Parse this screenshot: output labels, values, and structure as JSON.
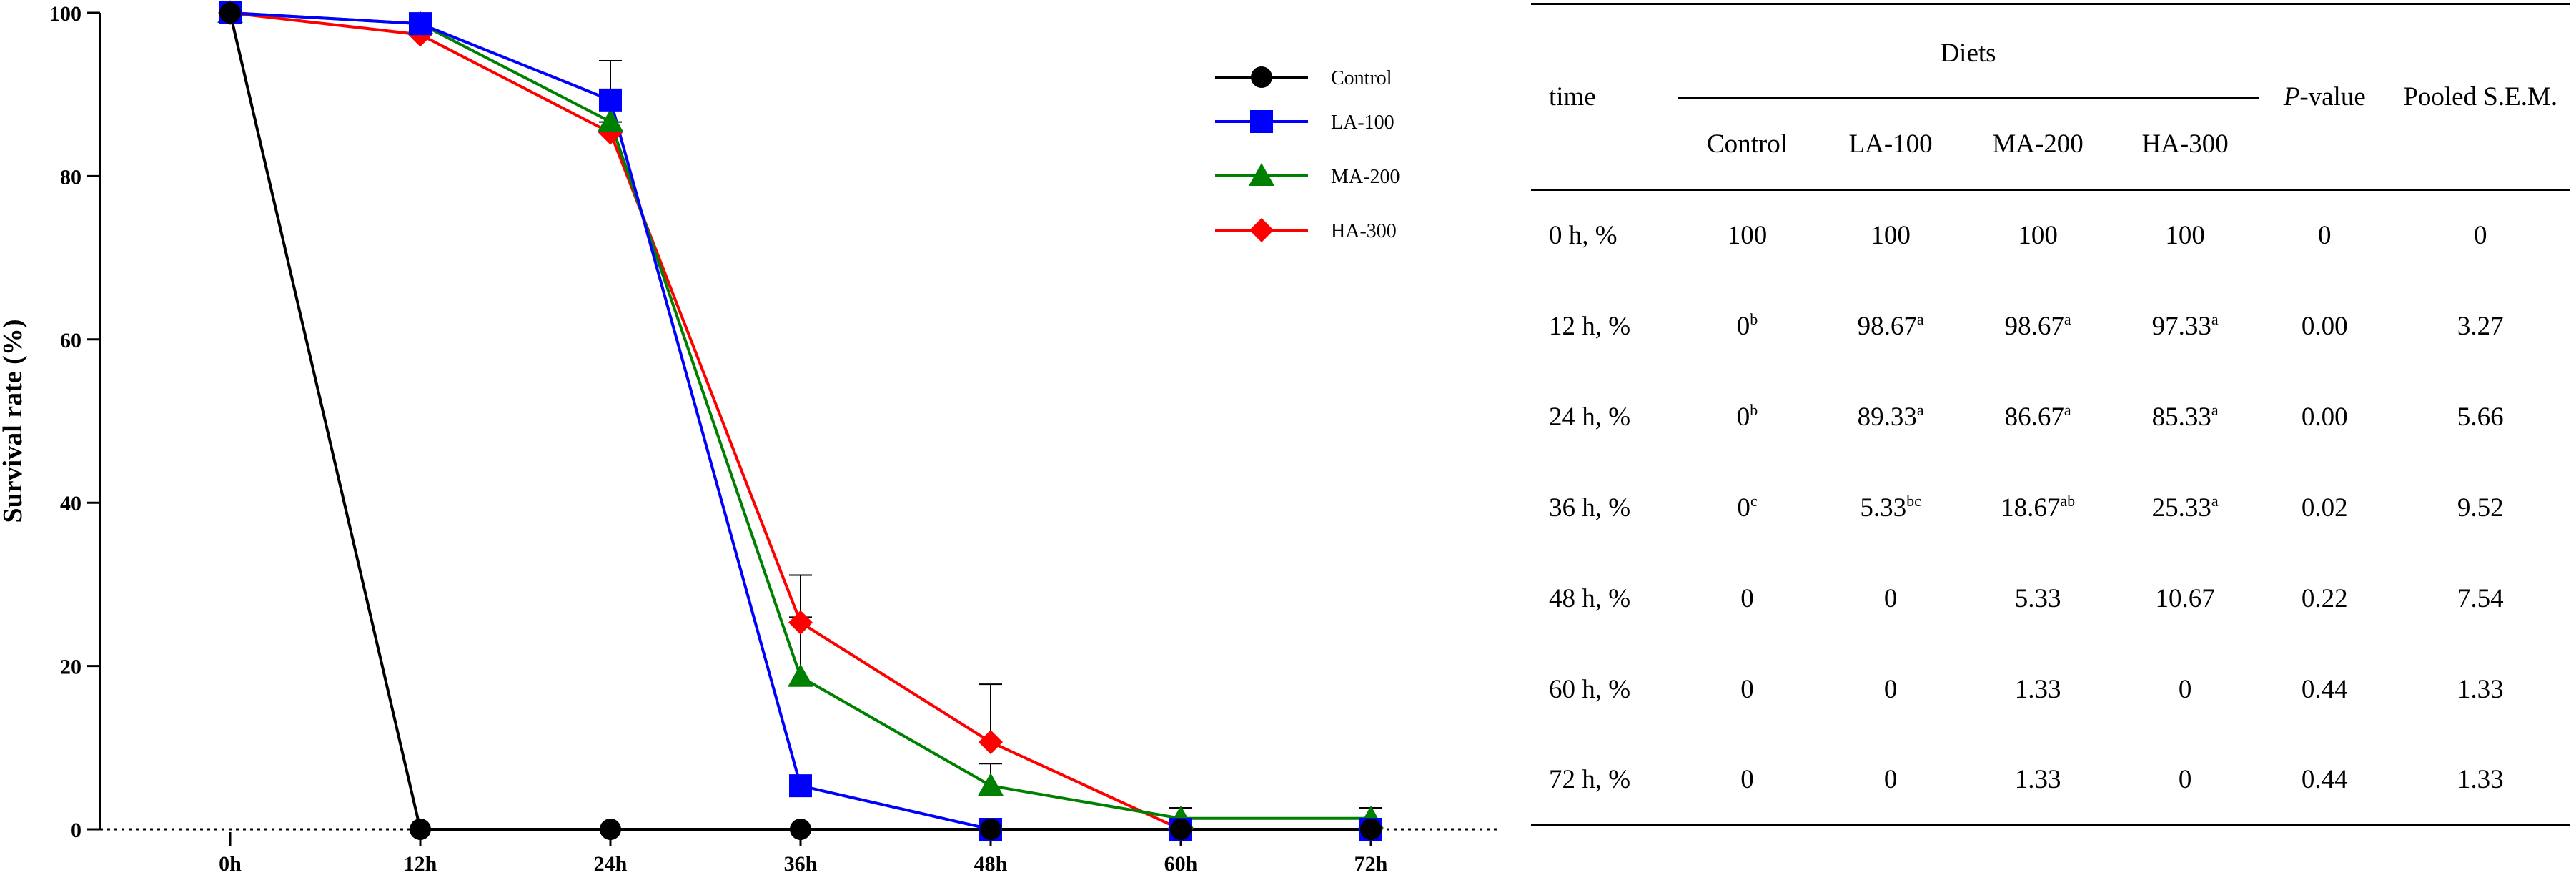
{
  "chart_data": {
    "type": "line",
    "ylabel": "Survival rate (%)",
    "xlabel": "",
    "categories": [
      "0h",
      "12h",
      "24h",
      "36h",
      "48h",
      "60h",
      "72h"
    ],
    "ylim": [
      0,
      100
    ],
    "yticks": [
      0,
      20,
      40,
      60,
      80,
      100
    ],
    "legend_position": "top-right",
    "series": [
      {
        "name": "Control",
        "color": "#000000",
        "marker": "circle",
        "values": [
          100,
          0,
          0,
          0,
          0,
          0,
          0
        ],
        "errors": [
          0,
          0,
          0,
          0,
          0,
          0,
          0
        ]
      },
      {
        "name": "LA-100",
        "color": "#0000ff",
        "marker": "square",
        "values": [
          100,
          98.67,
          89.33,
          5.33,
          0,
          0,
          0
        ],
        "errors": [
          0,
          1.3,
          4.8,
          0,
          0,
          0,
          0
        ]
      },
      {
        "name": "MA-200",
        "color": "#008000",
        "marker": "triangle",
        "values": [
          100,
          98.67,
          86.67,
          18.67,
          5.33,
          1.33,
          1.33
        ],
        "errors": [
          0,
          1.3,
          2.5,
          7.3,
          2.7,
          1.3,
          1.3
        ]
      },
      {
        "name": "HA-300",
        "color": "#ff0000",
        "marker": "diamond",
        "values": [
          100,
          97.33,
          85.33,
          25.33,
          10.67,
          0,
          0
        ],
        "errors": [
          0,
          2.6,
          1.3,
          5.8,
          7.1,
          0,
          0
        ]
      }
    ]
  },
  "table": {
    "header_time": "time",
    "header_diets": "Diets",
    "header_p_italic": "P",
    "header_p_rest": "-value",
    "header_sem": "Pooled S.E.M.",
    "diet_columns": [
      "Control",
      "LA-100",
      "MA-200",
      "HA-300"
    ],
    "rows": [
      {
        "time": "0 h, %",
        "cells": [
          {
            "v": "100",
            "s": ""
          },
          {
            "v": "100",
            "s": ""
          },
          {
            "v": "100",
            "s": ""
          },
          {
            "v": "100",
            "s": ""
          }
        ],
        "p": "0",
        "sem": "0"
      },
      {
        "time": "12 h, %",
        "cells": [
          {
            "v": "0",
            "s": "b"
          },
          {
            "v": "98.67",
            "s": "a"
          },
          {
            "v": "98.67",
            "s": "a"
          },
          {
            "v": "97.33",
            "s": "a"
          }
        ],
        "p": "0.00",
        "sem": "3.27"
      },
      {
        "time": "24 h, %",
        "cells": [
          {
            "v": "0",
            "s": "b"
          },
          {
            "v": "89.33",
            "s": "a"
          },
          {
            "v": "86.67",
            "s": "a"
          },
          {
            "v": "85.33",
            "s": "a"
          }
        ],
        "p": "0.00",
        "sem": "5.66"
      },
      {
        "time": "36 h, %",
        "cells": [
          {
            "v": "0",
            "s": "c"
          },
          {
            "v": "5.33",
            "s": "bc"
          },
          {
            "v": "18.67",
            "s": "ab"
          },
          {
            "v": "25.33",
            "s": "a"
          }
        ],
        "p": "0.02",
        "sem": "9.52"
      },
      {
        "time": "48 h, %",
        "cells": [
          {
            "v": "0",
            "s": ""
          },
          {
            "v": "0",
            "s": ""
          },
          {
            "v": "5.33",
            "s": ""
          },
          {
            "v": "10.67",
            "s": ""
          }
        ],
        "p": "0.22",
        "sem": "7.54"
      },
      {
        "time": "60 h, %",
        "cells": [
          {
            "v": "0",
            "s": ""
          },
          {
            "v": "0",
            "s": ""
          },
          {
            "v": "1.33",
            "s": ""
          },
          {
            "v": "0",
            "s": ""
          }
        ],
        "p": "0.44",
        "sem": "1.33"
      },
      {
        "time": "72 h, %",
        "cells": [
          {
            "v": "0",
            "s": ""
          },
          {
            "v": "0",
            "s": ""
          },
          {
            "v": "1.33",
            "s": ""
          },
          {
            "v": "0",
            "s": ""
          }
        ],
        "p": "0.44",
        "sem": "1.33"
      }
    ]
  }
}
